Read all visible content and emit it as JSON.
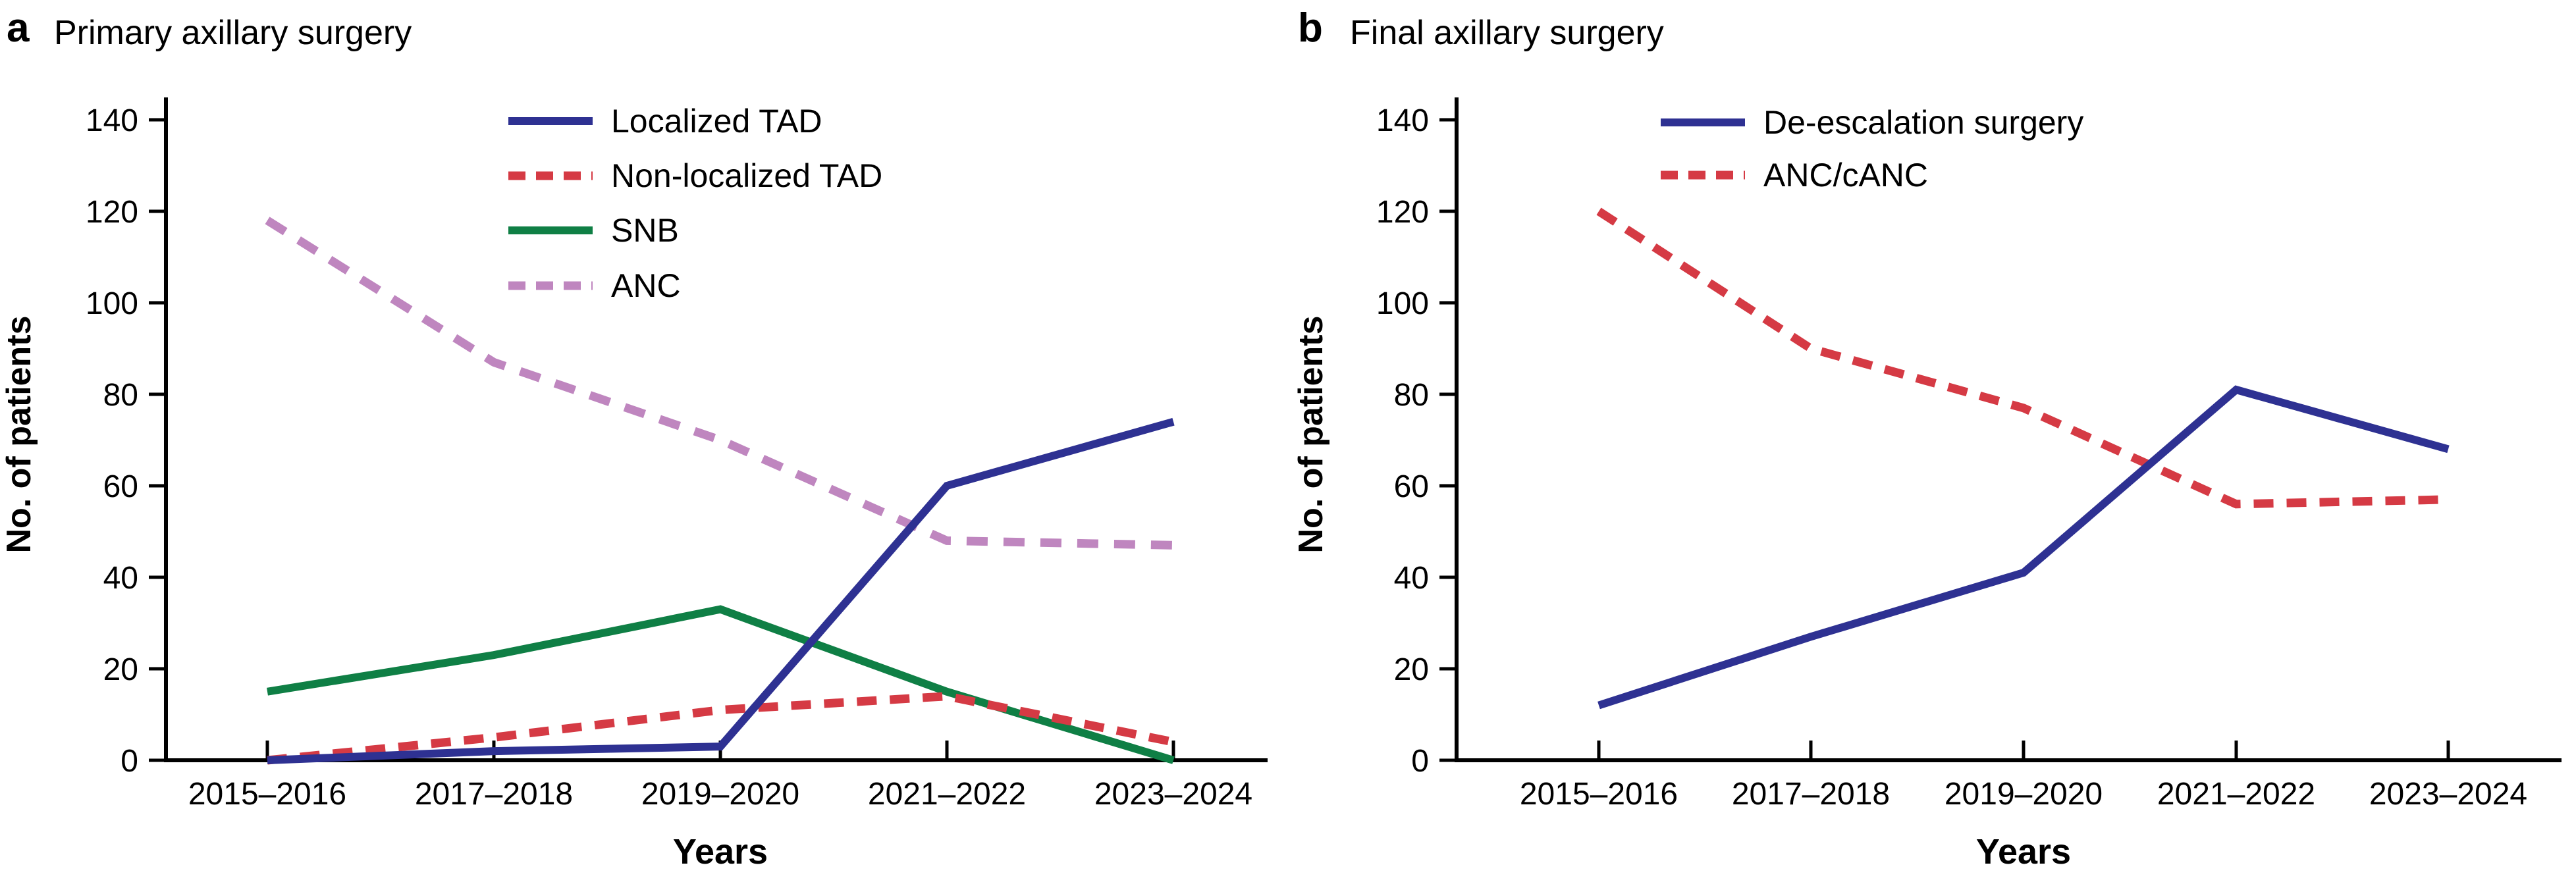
{
  "page": {
    "background": "#ffffff",
    "axis_color": "#000000"
  },
  "panels": [
    {
      "key": "a",
      "letter": "a",
      "title": "Primary axillary surgery"
    },
    {
      "key": "b",
      "letter": "b",
      "title": "Final axillary surgery"
    }
  ],
  "chart_data": [
    {
      "type": "line",
      "panel": "a",
      "title": "Primary axillary surgery",
      "xlabel": "Years",
      "ylabel": "No. of patients",
      "categories": [
        "2015–2016",
        "2017–2018",
        "2019–2020",
        "2021–2022",
        "2023–2024"
      ],
      "ylim": [
        0,
        140
      ],
      "yticks": [
        0,
        20,
        40,
        60,
        80,
        100,
        120,
        140
      ],
      "grid": false,
      "legend_position": "top-left-inside",
      "series": [
        {
          "name": "SNB",
          "color": "#0f7f45",
          "line_style": "solid",
          "values": [
            15,
            23,
            33,
            15,
            0
          ]
        },
        {
          "name": "ANC",
          "color": "#bf86bf",
          "line_style": "dashed",
          "dash": [
            32,
            24
          ],
          "values": [
            118,
            87,
            70,
            48,
            47
          ]
        },
        {
          "name": "Non-localized TAD",
          "color": "#d53a44",
          "line_style": "dashed",
          "dash": [
            30,
            20
          ],
          "values": [
            0,
            5,
            11,
            14,
            4
          ]
        },
        {
          "name": "Localized TAD",
          "color": "#2e3192",
          "line_style": "solid",
          "values": [
            0,
            2,
            3,
            60,
            74
          ]
        }
      ],
      "legend_order": [
        "Localized TAD",
        "Non-localized TAD",
        "SNB",
        "ANC"
      ]
    },
    {
      "type": "line",
      "panel": "b",
      "title": "Final axillary surgery",
      "xlabel": "Years",
      "ylabel": "No. of patients",
      "categories": [
        "2015–2016",
        "2017–2018",
        "2019–2020",
        "2021–2022",
        "2023–2024"
      ],
      "ylim": [
        0,
        140
      ],
      "yticks": [
        0,
        20,
        40,
        60,
        80,
        100,
        120,
        140
      ],
      "grid": false,
      "legend_position": "top-left-inside",
      "series": [
        {
          "name": "ANC/cANC",
          "color": "#d53a44",
          "line_style": "dashed",
          "dash": [
            30,
            20
          ],
          "values": [
            120,
            90,
            77,
            56,
            57
          ]
        },
        {
          "name": "De-escalation surgery",
          "color": "#2e3192",
          "line_style": "solid",
          "values": [
            12,
            27,
            41,
            81,
            68
          ]
        }
      ],
      "legend_order": [
        "De-escalation surgery",
        "ANC/cANC"
      ]
    }
  ]
}
